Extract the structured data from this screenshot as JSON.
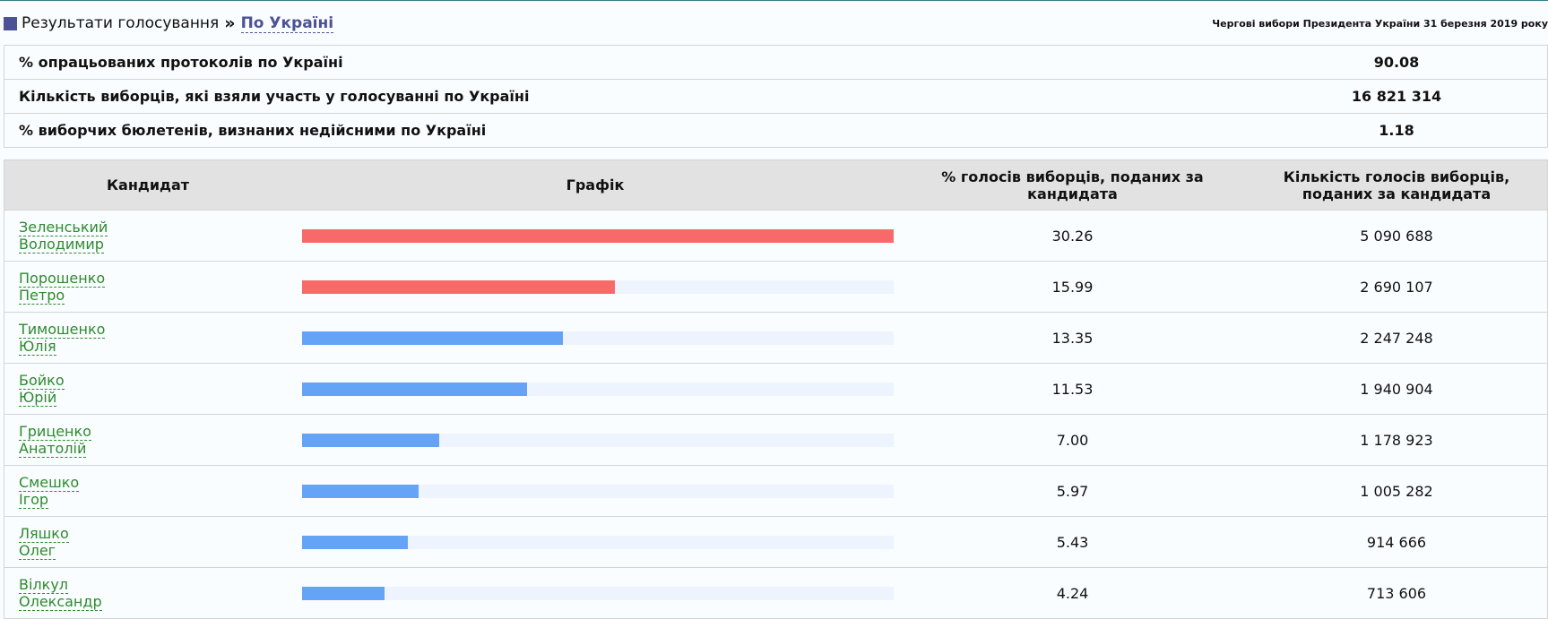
{
  "breadcrumb": {
    "root": "Результати голосування",
    "separator": "»",
    "current": "По Україні"
  },
  "election_title": "Чергові вибори Президента України 31 березня 2019 року",
  "summary": [
    {
      "label": "% опрацьованих протоколів по Україні",
      "value": "90.08"
    },
    {
      "label": "Кількість виборців, які взяли участь у голосуванні по Україні",
      "value": "16 821 314"
    },
    {
      "label": "% виборчих бюлетенів, визнаних недійсними по Україні",
      "value": "1.18"
    }
  ],
  "table": {
    "headers": {
      "candidate": "Кандидат",
      "chart": "Графік",
      "percent": "% голосів виборців, поданих за кандидата",
      "count": "Кількість голосів виборців, поданих за кандидата"
    },
    "colors": {
      "leader": "#f86969",
      "other": "#64a3f6",
      "track": "#eef4fd"
    },
    "max_percent": 30.26,
    "rows": [
      {
        "surname": "Зеленський",
        "given": "Володимир",
        "percent": "30.26",
        "count": "5 090 688",
        "color": "#f86969"
      },
      {
        "surname": "Порошенко",
        "given": "Петро",
        "percent": "15.99",
        "count": "2 690 107",
        "color": "#f86969"
      },
      {
        "surname": "Тимошенко",
        "given": "Юлія",
        "percent": "13.35",
        "count": "2 247 248",
        "color": "#64a3f6"
      },
      {
        "surname": "Бойко",
        "given": "Юрій",
        "percent": "11.53",
        "count": "1 940 904",
        "color": "#64a3f6"
      },
      {
        "surname": "Гриценко",
        "given": "Анатолій",
        "percent": "7.00",
        "count": "1 178 923",
        "color": "#64a3f6"
      },
      {
        "surname": "Смешко",
        "given": "Ігор",
        "percent": "5.97",
        "count": "1 005 282",
        "color": "#64a3f6"
      },
      {
        "surname": "Ляшко",
        "given": "Олег",
        "percent": "5.43",
        "count": "914 666",
        "color": "#64a3f6"
      },
      {
        "surname": "Вілкул",
        "given": "Олександр",
        "percent": "4.24",
        "count": "713 606",
        "color": "#64a3f6"
      }
    ]
  }
}
